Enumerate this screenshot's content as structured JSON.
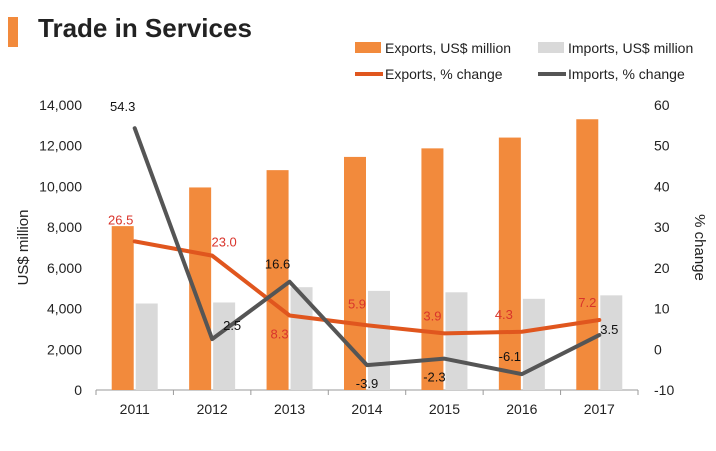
{
  "chart_data": {
    "type": "bar",
    "title": "Trade in Services",
    "categories": [
      "2011",
      "2012",
      "2013",
      "2014",
      "2015",
      "2016",
      "2017"
    ],
    "series": [
      {
        "name": "Exports, US$ million",
        "kind": "bar",
        "axis": "left",
        "color": "#f28a3c",
        "values": [
          8050,
          9950,
          10800,
          11450,
          11870,
          12400,
          13300
        ]
      },
      {
        "name": "Imports, US$ million",
        "kind": "bar",
        "axis": "left",
        "color": "#d9d9d9",
        "values": [
          4250,
          4300,
          5050,
          4870,
          4800,
          4480,
          4650
        ]
      },
      {
        "name": "Exports, % change",
        "kind": "line",
        "axis": "right",
        "color": "#e0561e",
        "values": [
          26.5,
          23.0,
          8.3,
          5.9,
          3.9,
          4.3,
          7.2
        ],
        "labels": [
          "26.5",
          "23.0",
          "8.3",
          "5.9",
          "3.9",
          "4.3",
          "7.2"
        ],
        "label_color": "#d9342b"
      },
      {
        "name": "Imports, % change",
        "kind": "line",
        "axis": "right",
        "color": "#555555",
        "values": [
          54.3,
          2.5,
          16.6,
          -3.9,
          -2.3,
          -6.1,
          3.5
        ],
        "labels": [
          "54.3",
          "2.5",
          "16.6",
          "-3.9",
          "-2.3",
          "-6.1",
          "3.5"
        ],
        "label_color": "#111111"
      }
    ],
    "ylabel": "US$ million",
    "y2label": "% change",
    "ylim": [
      0,
      14000
    ],
    "y2lim": [
      -10,
      60
    ],
    "yticks": [
      "0",
      "2,000",
      "4,000",
      "6,000",
      "8,000",
      "10,000",
      "12,000",
      "14,000"
    ],
    "y2ticks": [
      "-10",
      "0",
      "10",
      "20",
      "30",
      "40",
      "50",
      "60"
    ],
    "legend_position": "top-right",
    "grid": false
  }
}
